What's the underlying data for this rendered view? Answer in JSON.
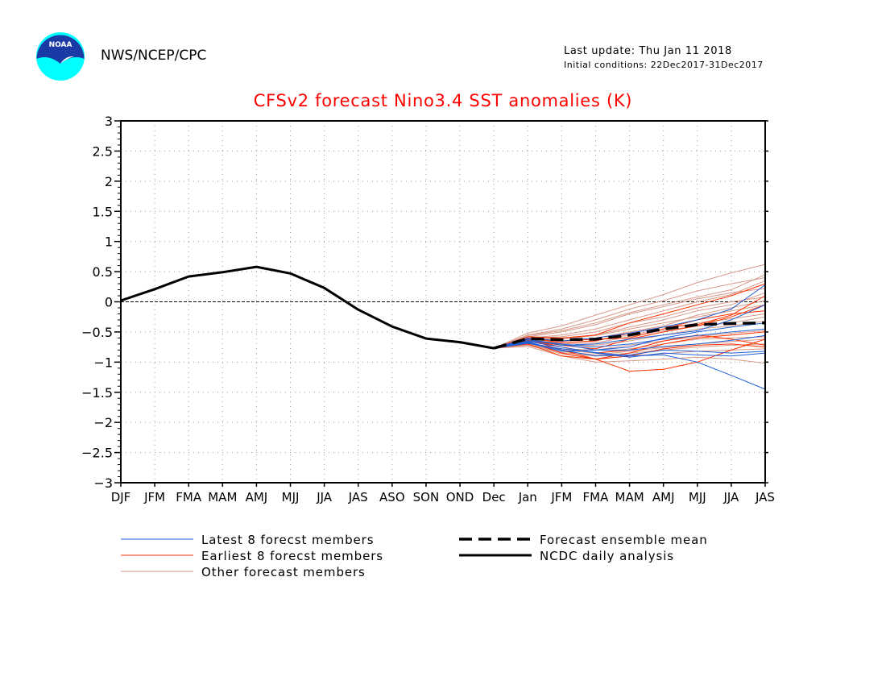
{
  "header": {
    "agency": "NWS/NCEP/CPC",
    "last_update": "Last update: Thu Jan 11 2018",
    "initial_conditions": "Initial conditions: 22Dec2017-31Dec2017",
    "logo_text": "NOAA"
  },
  "chart_data": {
    "type": "line",
    "title": "CFSv2 forecast Nino3.4 SST anomalies (K)",
    "xlabel": "",
    "ylabel": "",
    "categories": [
      "DJF",
      "JFM",
      "FMA",
      "MAM",
      "AMJ",
      "MJJ",
      "JJA",
      "JAS",
      "ASO",
      "SON",
      "OND",
      "Dec",
      "Jan",
      "JFM",
      "FMA",
      "MAM",
      "AMJ",
      "MJJ",
      "JJA",
      "JAS"
    ],
    "ylim": [
      -3,
      3
    ],
    "yticks": [
      3,
      2.5,
      2,
      1.5,
      1,
      0.5,
      0,
      -0.5,
      -1,
      -1.5,
      -2,
      -2.5,
      -3
    ],
    "ytick_labels": [
      "3",
      "2.5",
      "2",
      "1.5",
      "1",
      "0.5",
      "0",
      "−0.5",
      "−1",
      "−1.5",
      "−2",
      "−2.5",
      "−3"
    ],
    "grid": "dotted",
    "zero_line": "dashed",
    "colors": {
      "latest": "#1f5fd6",
      "earliest": "#ff3000",
      "other": "#d89a8a",
      "analysis": "#000000",
      "mean": "#000000",
      "title": "#ff0000"
    },
    "analysis": {
      "name": "NCDC daily analysis",
      "values": [
        0.02,
        0.21,
        0.42,
        0.49,
        0.58,
        0.47,
        0.23,
        -0.13,
        -0.41,
        -0.61,
        -0.67,
        -0.77
      ]
    },
    "ensemble_mean": {
      "name": "Forecast ensemble mean",
      "values": [
        -0.77,
        -0.61,
        -0.63,
        -0.62,
        -0.55,
        -0.45,
        -0.38,
        -0.36,
        -0.35
      ]
    },
    "forecast_start_index": 11,
    "members": {
      "latest": {
        "name": "Latest 8 forecst members",
        "series": [
          [
            -0.77,
            -0.69,
            -0.78,
            -0.84,
            -0.9,
            -0.88,
            -1.0,
            -1.22,
            -1.45
          ],
          [
            -0.77,
            -0.65,
            -0.7,
            -0.8,
            -0.8,
            -0.74,
            -0.7,
            -0.64,
            -0.56
          ],
          [
            -0.77,
            -0.62,
            -0.72,
            -0.7,
            -0.62,
            -0.55,
            -0.48,
            -0.3,
            -0.05
          ],
          [
            -0.77,
            -0.66,
            -0.75,
            -0.85,
            -0.92,
            -0.85,
            -0.88,
            -0.9,
            -0.85
          ],
          [
            -0.77,
            -0.6,
            -0.65,
            -0.6,
            -0.52,
            -0.42,
            -0.3,
            -0.12,
            0.28
          ],
          [
            -0.77,
            -0.68,
            -0.82,
            -0.8,
            -0.75,
            -0.6,
            -0.5,
            -0.42,
            -0.35
          ],
          [
            -0.77,
            -0.63,
            -0.7,
            -0.75,
            -0.7,
            -0.62,
            -0.56,
            -0.5,
            -0.45
          ],
          [
            -0.77,
            -0.67,
            -0.8,
            -0.9,
            -0.88,
            -0.8,
            -0.82,
            -0.85,
            -0.82
          ]
        ]
      },
      "earliest": {
        "name": "Earliest 8 forecst members",
        "series": [
          [
            -0.77,
            -0.62,
            -0.8,
            -0.95,
            -1.15,
            -1.12,
            -1.0,
            -0.8,
            -0.62
          ],
          [
            -0.77,
            -0.58,
            -0.6,
            -0.55,
            -0.35,
            -0.2,
            -0.05,
            0.1,
            0.3
          ],
          [
            -0.77,
            -0.64,
            -0.72,
            -0.78,
            -0.62,
            -0.5,
            -0.4,
            -0.25,
            -0.05
          ],
          [
            -0.77,
            -0.66,
            -0.85,
            -0.95,
            -0.9,
            -0.78,
            -0.72,
            -0.7,
            -0.75
          ],
          [
            -0.77,
            -0.6,
            -0.68,
            -0.65,
            -0.52,
            -0.42,
            -0.38,
            -0.22,
            0.1
          ],
          [
            -0.77,
            -0.7,
            -0.9,
            -0.95,
            -0.85,
            -0.7,
            -0.6,
            -0.55,
            -0.5
          ],
          [
            -0.77,
            -0.61,
            -0.65,
            -0.62,
            -0.6,
            -0.45,
            -0.3,
            -0.2,
            -0.15
          ],
          [
            -0.77,
            -0.63,
            -0.75,
            -0.85,
            -0.8,
            -0.65,
            -0.55,
            -0.62,
            -0.72
          ]
        ]
      },
      "other": {
        "name": "Other forecast members",
        "series": [
          [
            -0.77,
            -0.52,
            -0.4,
            -0.22,
            -0.05,
            0.12,
            0.32,
            0.48,
            0.62
          ],
          [
            -0.77,
            -0.55,
            -0.45,
            -0.3,
            -0.12,
            0.02,
            0.18,
            0.3,
            0.4
          ],
          [
            -0.77,
            -0.58,
            -0.5,
            -0.38,
            -0.2,
            -0.08,
            0.05,
            0.15,
            0.22
          ],
          [
            -0.77,
            -0.6,
            -0.58,
            -0.5,
            -0.35,
            -0.25,
            -0.1,
            0.0,
            0.08
          ],
          [
            -0.77,
            -0.62,
            -0.62,
            -0.56,
            -0.45,
            -0.35,
            -0.25,
            -0.15,
            -0.05
          ],
          [
            -0.77,
            -0.64,
            -0.68,
            -0.64,
            -0.55,
            -0.45,
            -0.35,
            -0.28,
            -0.2
          ],
          [
            -0.77,
            -0.66,
            -0.72,
            -0.72,
            -0.65,
            -0.55,
            -0.45,
            -0.4,
            -0.32
          ],
          [
            -0.77,
            -0.68,
            -0.78,
            -0.8,
            -0.72,
            -0.65,
            -0.58,
            -0.52,
            -0.48
          ],
          [
            -0.77,
            -0.7,
            -0.82,
            -0.88,
            -0.82,
            -0.76,
            -0.7,
            -0.66,
            -0.62
          ],
          [
            -0.77,
            -0.72,
            -0.86,
            -0.95,
            -0.9,
            -0.86,
            -0.82,
            -0.8,
            -0.78
          ],
          [
            -0.77,
            -0.74,
            -0.9,
            -1.0,
            -0.98,
            -0.95,
            -0.92,
            -0.95,
            -1.02
          ],
          [
            -0.77,
            -0.6,
            -0.55,
            -0.45,
            -0.3,
            -0.15,
            0.0,
            0.12,
            0.35
          ],
          [
            -0.77,
            -0.63,
            -0.66,
            -0.6,
            -0.5,
            -0.4,
            -0.22,
            -0.1,
            0.02
          ],
          [
            -0.77,
            -0.65,
            -0.7,
            -0.68,
            -0.58,
            -0.48,
            -0.4,
            -0.35,
            -0.25
          ],
          [
            -0.77,
            -0.69,
            -0.8,
            -0.85,
            -0.78,
            -0.7,
            -0.62,
            -0.6,
            -0.58
          ],
          [
            -0.77,
            -0.56,
            -0.48,
            -0.35,
            -0.18,
            -0.05,
            0.08,
            0.2,
            0.45
          ],
          [
            -0.77,
            -0.62,
            -0.6,
            -0.55,
            -0.42,
            -0.3,
            -0.15,
            -0.05,
            0.15
          ],
          [
            -0.77,
            -0.71,
            -0.84,
            -0.9,
            -0.85,
            -0.8,
            -0.75,
            -0.72,
            -0.7
          ]
        ]
      }
    },
    "legend": [
      {
        "key": "latest",
        "label": "Latest 8 forecst members",
        "style": "thin-blue"
      },
      {
        "key": "earliest",
        "label": "Earliest 8 forecst members",
        "style": "thin-red"
      },
      {
        "key": "other",
        "label": "Other forecast members",
        "style": "thin-pink"
      },
      {
        "key": "mean",
        "label": "Forecast ensemble mean",
        "style": "thick-dashed-black"
      },
      {
        "key": "analysis",
        "label": "NCDC daily analysis",
        "style": "thick-solid-black"
      }
    ]
  }
}
